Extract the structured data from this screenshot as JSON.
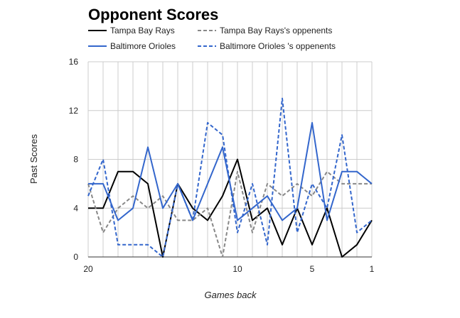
{
  "chart_data": {
    "type": "line",
    "title": "Opponent Scores",
    "xlabel": "Games back",
    "ylabel": "Past Scores",
    "x": [
      20,
      19,
      18,
      17,
      16,
      15,
      14,
      13,
      12,
      11,
      10,
      9,
      8,
      7,
      6,
      5,
      4,
      3,
      2,
      1
    ],
    "xlim": [
      20,
      1
    ],
    "ylim": [
      0,
      16
    ],
    "yticks": [
      "0",
      "4",
      "8",
      "12",
      "16"
    ],
    "xticks": [
      {
        "value": 20,
        "label": "20"
      },
      {
        "value": 10,
        "label": "10"
      },
      {
        "value": 5,
        "label": "5"
      },
      {
        "value": 1,
        "label": "1"
      }
    ],
    "grid": true,
    "legend_position": "top",
    "series": [
      {
        "name": "Tampa Bay Rays",
        "color": "#000000",
        "style": "solid",
        "values": [
          4,
          4,
          7,
          7,
          6,
          0,
          6,
          4,
          3,
          5,
          8,
          3,
          4,
          1,
          4,
          1,
          4,
          0,
          1,
          3
        ]
      },
      {
        "name": "Tampa Bay Rays's oppenents",
        "color": "#888888",
        "style": "dashed",
        "values": [
          6,
          2,
          4,
          5,
          4,
          5,
          3,
          3,
          4,
          0,
          7,
          2,
          6,
          5,
          6,
          5,
          7,
          6,
          6,
          6
        ]
      },
      {
        "name": "Baltimore Orioles",
        "color": "#3366cc",
        "style": "solid",
        "values": [
          6,
          6,
          3,
          4,
          9,
          4,
          6,
          3,
          6,
          9,
          3,
          4,
          5,
          3,
          4,
          11,
          3,
          7,
          7,
          6
        ]
      },
      {
        "name": "Baltimore Orioles 's oppenents",
        "color": "#3366cc",
        "style": "dashed",
        "values": [
          5,
          8,
          1,
          1,
          1,
          0,
          6,
          3,
          11,
          10,
          2,
          6,
          1,
          13,
          2,
          6,
          4,
          10,
          2,
          3
        ]
      }
    ]
  }
}
